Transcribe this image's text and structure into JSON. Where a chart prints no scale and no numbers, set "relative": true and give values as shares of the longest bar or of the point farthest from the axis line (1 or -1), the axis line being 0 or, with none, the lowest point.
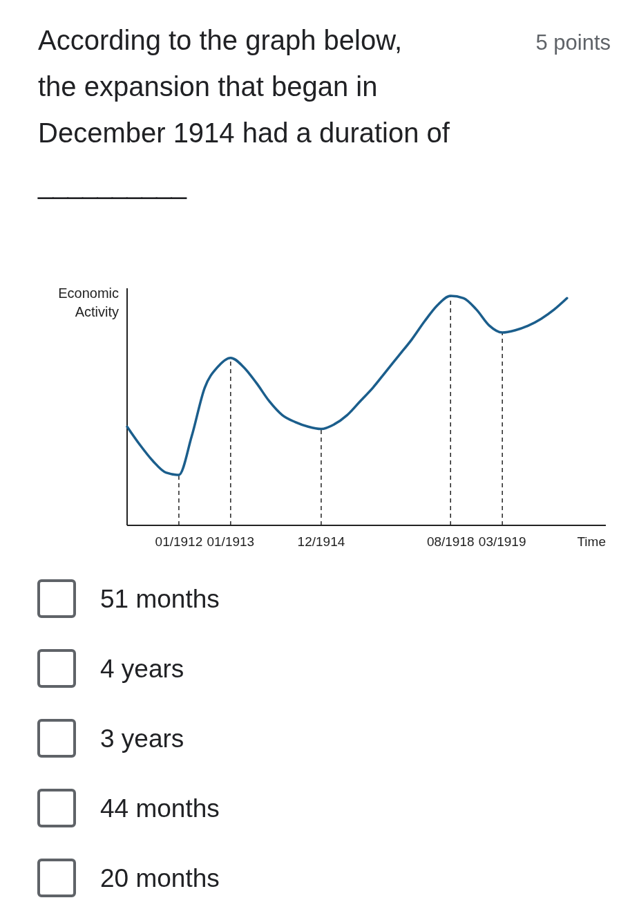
{
  "chart_data": {
    "type": "line",
    "title": "According to the graph below, the expansion that began in December 1914 had a duration of",
    "ylabel": "Economic Activity",
    "xlabel": "Time",
    "relative": true,
    "color": "#1b5e8c",
    "categories": [
      null,
      null,
      null,
      null,
      "01/1912",
      null,
      null,
      null,
      "01/1913",
      null,
      null,
      null,
      null,
      null,
      null,
      "12/1914",
      null,
      null,
      null,
      null,
      null,
      null,
      null,
      null,
      null,
      "08/1918",
      null,
      null,
      null,
      "03/1919",
      null,
      null,
      null,
      null,
      null,
      null,
      null,
      null
    ],
    "values": [
      0.43,
      0.35,
      0.28,
      0.23,
      0.22,
      0.39,
      0.6,
      0.69,
      0.73,
      0.69,
      0.62,
      0.54,
      0.48,
      0.45,
      0.43,
      0.42,
      0.44,
      0.48,
      0.54,
      0.6,
      0.67,
      0.74,
      0.81,
      0.89,
      0.96,
      1,
      0.99,
      0.94,
      0.87,
      0.84,
      0.85,
      0.87,
      0.9,
      0.94,
      0.99,
      null,
      null,
      null
    ],
    "ref_lines": [
      {
        "axis": "x",
        "value": "01/1912",
        "line_style": "dashed"
      },
      {
        "axis": "x",
        "value": "01/1913",
        "line_style": "dashed"
      },
      {
        "axis": "x",
        "value": "12/1914",
        "line_style": "dashed"
      },
      {
        "axis": "x",
        "value": "08/1918",
        "line_style": "dashed"
      },
      {
        "axis": "x",
        "value": "03/1919",
        "line_style": "dashed"
      }
    ],
    "annotations": [
      "5 points",
      "__________",
      "51 months",
      "4 years",
      "3 years",
      "44 months",
      "20 months"
    ],
    "marker": "none",
    "line_style": "solid"
  }
}
